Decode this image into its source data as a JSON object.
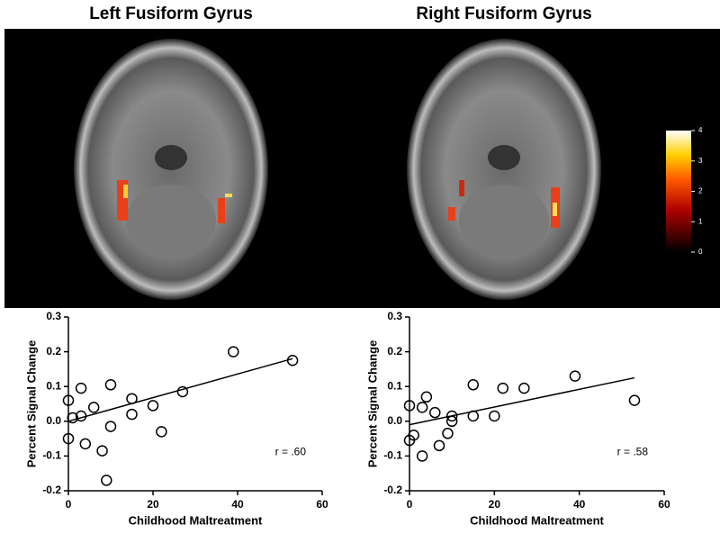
{
  "panels": [
    {
      "title": "Left Fusiform Gyrus"
    },
    {
      "title": "Right Fusiform Gyrus"
    }
  ],
  "colorbar": {
    "ticks": [
      0,
      1,
      2,
      3,
      4
    ],
    "lim": [
      0,
      4
    ]
  },
  "chart_data": [
    {
      "type": "scatter",
      "x_label": "Childhood Maltreatment",
      "y_label": "Percent Signal Change",
      "annotation": "r = .60",
      "x": [
        0,
        0,
        1,
        3,
        3,
        4,
        6,
        8,
        9,
        10,
        10,
        15,
        15,
        20,
        22,
        27,
        39,
        53
      ],
      "values": [
        0.06,
        -0.05,
        0.01,
        0.015,
        0.095,
        -0.065,
        0.04,
        -0.085,
        -0.17,
        0.105,
        -0.015,
        0.065,
        0.02,
        0.045,
        -0.03,
        0.085,
        0.2,
        0.175
      ],
      "trend_line": {
        "x": [
          0,
          53
        ],
        "y": [
          0.0,
          0.18
        ]
      },
      "xlim": [
        0,
        60
      ],
      "xticks": [
        0,
        20,
        40,
        60
      ],
      "ylim": [
        -0.2,
        0.3
      ],
      "yticks": [
        -0.2,
        -0.1,
        {
          "value": 0,
          "label": "0.0"
        },
        0.1,
        0.2,
        0.3
      ]
    },
    {
      "type": "scatter",
      "x_label": "Childhood Maltreatment",
      "y_label": "Percent Signal Change",
      "annotation": "r = .58",
      "x": [
        0,
        0,
        1,
        3,
        3,
        4,
        6,
        7,
        9,
        10,
        10,
        15,
        15,
        20,
        22,
        27,
        39,
        53
      ],
      "values": [
        0.045,
        -0.055,
        -0.04,
        0.04,
        -0.1,
        0.07,
        0.025,
        -0.07,
        -0.035,
        0.015,
        0.0,
        0.105,
        0.015,
        0.015,
        0.095,
        0.095,
        0.13,
        0.06
      ],
      "trend_line": {
        "x": [
          0,
          53
        ],
        "y": [
          -0.01,
          0.125
        ]
      },
      "xlim": [
        0,
        60
      ],
      "xticks": [
        0,
        20,
        40,
        60
      ],
      "ylim": [
        -0.2,
        0.3
      ],
      "yticks": [
        -0.2,
        -0.1,
        {
          "value": 0,
          "label": "0.0"
        },
        0.1,
        0.2,
        0.3
      ]
    }
  ]
}
